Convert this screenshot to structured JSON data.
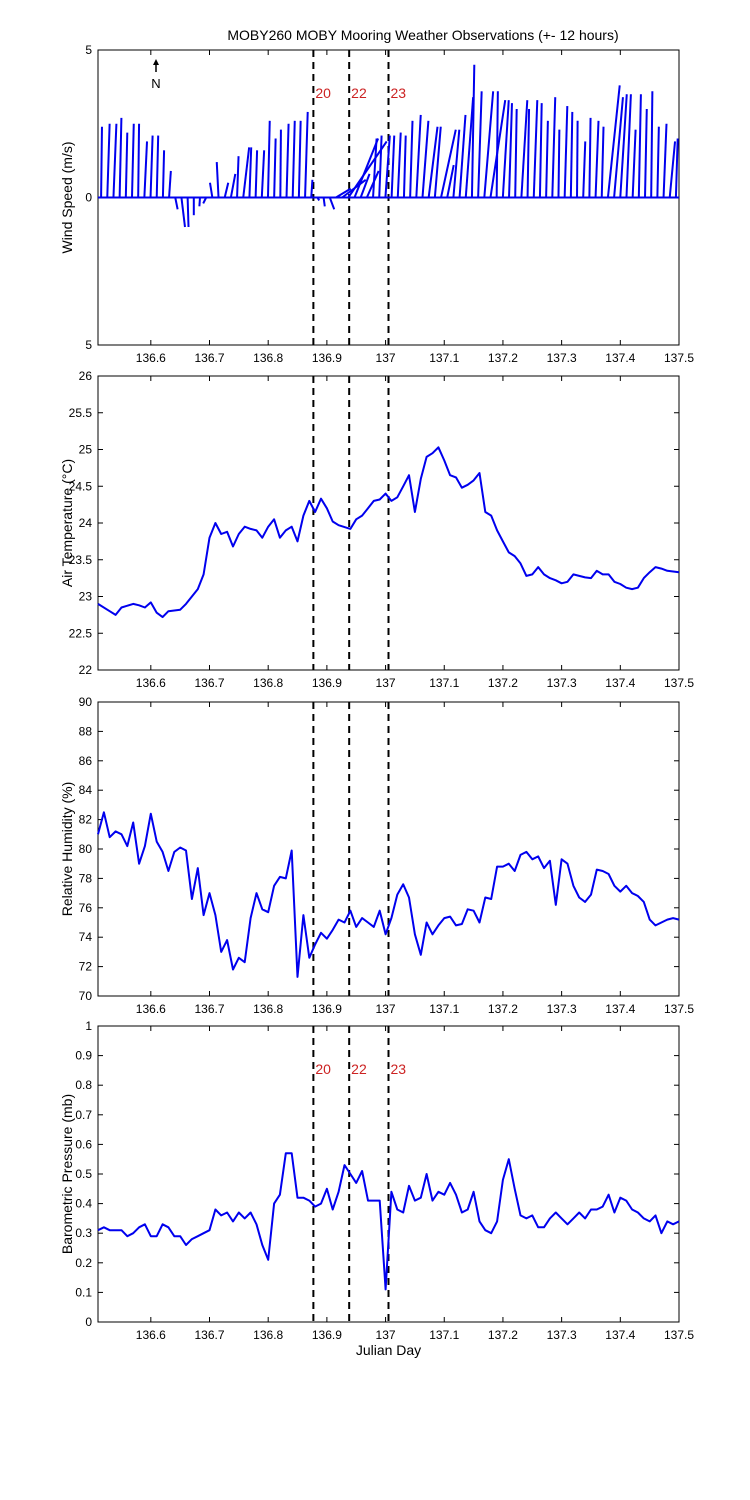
{
  "title": "MOBY260 MOBY Mooring Weather Observations (+- 12 hours)",
  "north_label": "N",
  "colors": {
    "series": "#0000ee",
    "marker_label": "#cc2222",
    "axis": "#000000",
    "marker_line": "#000000"
  },
  "shared_x": {
    "xlim": [
      136.51,
      137.5
    ],
    "ticks": [
      136.6,
      136.7,
      136.8,
      136.9,
      137,
      137.1,
      137.2,
      137.3,
      137.4,
      137.5
    ],
    "tick_labels": [
      "136.6",
      "136.7",
      "136.8",
      "136.9",
      "137",
      "137.1",
      "137.2",
      "137.3",
      "137.4",
      "137.5"
    ]
  },
  "markers": {
    "x": [
      136.877,
      136.938,
      137.005
    ],
    "labels": [
      "20",
      "22",
      "23"
    ]
  },
  "chart_data": [
    {
      "type": "quiver",
      "ylabel": "Wind Speed (m/s)",
      "xlabel": "",
      "ylim": [
        -5,
        5
      ],
      "yticks": [
        -5,
        0,
        5
      ],
      "ytick_labels": [
        "5",
        "0",
        "5"
      ],
      "show_marker_labels": true,
      "show_north_arrow": true,
      "u": [
        0.03,
        0.08,
        0.1,
        0.06,
        0.05,
        0.06,
        0.03,
        0.09,
        0.07,
        0.05,
        0.04,
        0.06,
        0.08,
        0.12,
        0.03,
        0.0,
        -0.02,
        -0.1,
        -0.08,
        -0.06,
        0.12,
        0.15,
        0.05,
        0.2,
        0.06,
        0.05,
        0.08,
        0.06,
        0.05,
        0.02,
        0.07,
        0.07,
        0.06,
        0.09,
        0.04,
        0.06,
        0.04,
        0.15,
        0.5,
        0.8,
        1.3,
        0.8,
        0.3,
        0.4,
        0.12,
        0.08,
        0.15,
        0.09,
        0.1,
        0.06,
        0.08,
        0.15,
        0.2,
        0.3,
        0.2,
        0.5,
        0.22,
        0.2,
        0.2,
        0.25,
        0.08,
        0.12,
        0.3,
        0.5,
        0.04,
        0.2,
        0.1,
        0.05,
        0.2,
        0.05,
        0.12,
        0.06,
        0.06,
        0.1,
        0.03,
        0.09,
        0.05,
        0.02,
        0.07,
        0.04,
        0.1,
        0.06,
        0.4,
        0.3,
        0.22,
        0.15,
        0.1,
        0.07,
        0.06,
        0.04,
        0.05,
        0.1,
        0.18,
        0.06
      ],
      "v": [
        2.4,
        2.5,
        2.5,
        2.7,
        2.2,
        2.5,
        2.5,
        1.9,
        2.1,
        2.1,
        1.6,
        0.9,
        -0.4,
        -1.0,
        -1.0,
        -0.6,
        -0.3,
        -0.2,
        0.5,
        1.2,
        0.5,
        0.8,
        1.4,
        1.7,
        1.7,
        1.6,
        1.6,
        2.6,
        2.0,
        2.3,
        2.5,
        2.6,
        2.6,
        2.9,
        0.6,
        -0.1,
        -0.3,
        -0.4,
        0.3,
        0.6,
        1.9,
        2.0,
        0.8,
        0.9,
        2.0,
        2.1,
        2.1,
        2.1,
        2.2,
        2.1,
        2.6,
        2.8,
        2.6,
        2.4,
        2.4,
        2.3,
        1.1,
        2.3,
        2.8,
        3.4,
        4.5,
        3.6,
        3.6,
        3.3,
        3.6,
        3.3,
        3.2,
        3.0,
        3.3,
        3.0,
        3.3,
        3.2,
        2.6,
        3.4,
        2.3,
        3.1,
        2.9,
        2.6,
        1.9,
        2.7,
        2.6,
        2.4,
        3.8,
        3.4,
        3.5,
        3.5,
        2.3,
        3.5,
        3.0,
        3.6,
        2.4,
        2.5,
        1.9,
        2.0
      ]
    },
    {
      "type": "line",
      "ylabel": "Air Temperature (°C)",
      "xlabel": "",
      "ylim": [
        22,
        26
      ],
      "yticks": [
        22,
        22.5,
        23,
        23.5,
        24,
        24.5,
        25,
        25.5,
        26
      ],
      "ytick_labels": [
        "22",
        "22.5",
        "23",
        "23.5",
        "24",
        "24.5",
        "25",
        "25.5",
        "26"
      ],
      "show_marker_labels": false,
      "x": [
        136.51,
        136.53,
        136.54,
        136.55,
        136.57,
        136.58,
        136.59,
        136.6,
        136.61,
        136.62,
        136.63,
        136.65,
        136.66,
        136.67,
        136.68,
        136.69,
        136.7,
        136.71,
        136.72,
        136.73,
        136.74,
        136.75,
        136.76,
        136.77,
        136.78,
        136.79,
        136.8,
        136.81,
        136.82,
        136.83,
        136.84,
        136.85,
        136.86,
        136.87,
        136.88,
        136.89,
        136.9,
        136.91,
        136.92,
        136.94,
        136.95,
        136.96,
        136.97,
        136.98,
        136.99,
        137.0,
        137.01,
        137.02,
        137.03,
        137.04,
        137.05,
        137.06,
        137.07,
        137.08,
        137.09,
        137.1,
        137.11,
        137.12,
        137.13,
        137.14,
        137.15,
        137.16,
        137.17,
        137.18,
        137.19,
        137.2,
        137.21,
        137.22,
        137.23,
        137.24,
        137.25,
        137.26,
        137.27,
        137.28,
        137.29,
        137.3,
        137.31,
        137.32,
        137.33,
        137.34,
        137.35,
        137.36,
        137.37,
        137.38,
        137.39,
        137.4,
        137.41,
        137.42,
        137.43,
        137.44,
        137.45,
        137.46,
        137.47,
        137.48,
        137.5
      ],
      "y": [
        22.9,
        22.8,
        22.75,
        22.85,
        22.9,
        22.88,
        22.85,
        22.92,
        22.78,
        22.72,
        22.8,
        22.82,
        22.9,
        23.0,
        23.1,
        23.3,
        23.8,
        24.0,
        23.85,
        23.88,
        23.68,
        23.85,
        23.95,
        23.92,
        23.9,
        23.8,
        23.95,
        24.05,
        23.8,
        23.9,
        23.95,
        23.75,
        24.1,
        24.3,
        24.15,
        24.33,
        24.2,
        24.02,
        23.97,
        23.92,
        24.05,
        24.1,
        24.2,
        24.3,
        24.32,
        24.4,
        24.3,
        24.35,
        24.5,
        24.65,
        24.15,
        24.6,
        24.9,
        24.95,
        25.03,
        24.85,
        24.65,
        24.62,
        24.48,
        24.52,
        24.58,
        24.68,
        24.15,
        24.1,
        23.9,
        23.75,
        23.6,
        23.55,
        23.45,
        23.28,
        23.3,
        23.4,
        23.3,
        23.25,
        23.22,
        23.18,
        23.2,
        23.3,
        23.28,
        23.26,
        23.25,
        23.35,
        23.3,
        23.3,
        23.2,
        23.17,
        23.12,
        23.1,
        23.12,
        23.25,
        23.33,
        23.4,
        23.38,
        23.35,
        23.33
      ]
    },
    {
      "type": "line",
      "ylabel": "Relative Humidity (%)",
      "xlabel": "",
      "ylim": [
        70,
        90
      ],
      "yticks": [
        70,
        72,
        74,
        76,
        78,
        80,
        82,
        84,
        86,
        88,
        90
      ],
      "ytick_labels": [
        "70",
        "72",
        "74",
        "76",
        "78",
        "80",
        "82",
        "84",
        "86",
        "88",
        "90"
      ],
      "show_marker_labels": false,
      "x": [
        136.51,
        136.52,
        136.53,
        136.54,
        136.55,
        136.56,
        136.57,
        136.58,
        136.59,
        136.6,
        136.61,
        136.62,
        136.63,
        136.64,
        136.65,
        136.66,
        136.67,
        136.68,
        136.69,
        136.7,
        136.71,
        136.72,
        136.73,
        136.74,
        136.75,
        136.76,
        136.77,
        136.78,
        136.79,
        136.8,
        136.81,
        136.82,
        136.83,
        136.84,
        136.85,
        136.86,
        136.87,
        136.88,
        136.89,
        136.9,
        136.91,
        136.92,
        136.93,
        136.94,
        136.95,
        136.96,
        136.97,
        136.98,
        136.99,
        137.0,
        137.01,
        137.02,
        137.03,
        137.04,
        137.05,
        137.06,
        137.07,
        137.08,
        137.09,
        137.1,
        137.11,
        137.12,
        137.13,
        137.14,
        137.15,
        137.16,
        137.17,
        137.18,
        137.19,
        137.2,
        137.21,
        137.22,
        137.23,
        137.24,
        137.25,
        137.26,
        137.27,
        137.28,
        137.29,
        137.3,
        137.31,
        137.32,
        137.33,
        137.34,
        137.35,
        137.36,
        137.37,
        137.38,
        137.39,
        137.4,
        137.41,
        137.42,
        137.43,
        137.44,
        137.45,
        137.46,
        137.47,
        137.48,
        137.49,
        137.5
      ],
      "y": [
        81.0,
        82.5,
        80.8,
        81.2,
        81.0,
        80.2,
        81.8,
        79.0,
        80.2,
        82.4,
        80.5,
        79.8,
        78.5,
        79.8,
        80.1,
        79.9,
        76.6,
        78.7,
        75.5,
        77.0,
        75.5,
        73.0,
        73.8,
        71.8,
        72.6,
        72.3,
        75.3,
        77.0,
        75.9,
        75.7,
        77.5,
        78.1,
        78.0,
        79.9,
        71.3,
        75.5,
        72.6,
        73.5,
        74.3,
        73.9,
        74.5,
        75.2,
        75.0,
        75.8,
        74.7,
        75.3,
        75.0,
        74.7,
        75.8,
        74.2,
        75.3,
        76.9,
        77.6,
        76.7,
        74.2,
        72.8,
        75.0,
        74.2,
        74.8,
        75.3,
        75.4,
        74.8,
        74.9,
        75.9,
        75.8,
        75.0,
        76.7,
        76.6,
        78.8,
        78.8,
        79.0,
        78.5,
        79.6,
        79.8,
        79.3,
        79.5,
        78.7,
        79.2,
        76.2,
        79.3,
        79.0,
        77.5,
        76.7,
        76.4,
        76.9,
        78.6,
        78.5,
        78.3,
        77.5,
        77.1,
        77.5,
        77.0,
        76.8,
        76.4,
        75.2,
        74.8,
        75.0,
        75.2,
        75.3,
        75.2
      ]
    },
    {
      "type": "line",
      "ylabel": "Barometric Pressure (mb)",
      "xlabel": "Julian Day",
      "ylim": [
        0,
        1
      ],
      "yticks": [
        0,
        0.1,
        0.2,
        0.3,
        0.4,
        0.5,
        0.6,
        0.7,
        0.8,
        0.9,
        1
      ],
      "ytick_labels": [
        "0",
        "0.1",
        "0.2",
        "0.3",
        "0.4",
        "0.5",
        "0.6",
        "0.7",
        "0.8",
        "0.9",
        "1"
      ],
      "show_marker_labels": true,
      "x": [
        136.51,
        136.52,
        136.53,
        136.54,
        136.55,
        136.56,
        136.57,
        136.58,
        136.59,
        136.6,
        136.61,
        136.62,
        136.63,
        136.64,
        136.65,
        136.66,
        136.67,
        136.68,
        136.69,
        136.7,
        136.71,
        136.72,
        136.73,
        136.74,
        136.75,
        136.76,
        136.77,
        136.78,
        136.79,
        136.8,
        136.81,
        136.82,
        136.83,
        136.84,
        136.85,
        136.86,
        136.87,
        136.88,
        136.89,
        136.9,
        136.91,
        136.92,
        136.93,
        136.94,
        136.95,
        136.96,
        136.97,
        136.98,
        136.99,
        137.0,
        137.01,
        137.02,
        137.03,
        137.04,
        137.05,
        137.06,
        137.07,
        137.08,
        137.09,
        137.1,
        137.11,
        137.12,
        137.13,
        137.14,
        137.15,
        137.16,
        137.17,
        137.18,
        137.19,
        137.2,
        137.21,
        137.22,
        137.23,
        137.24,
        137.25,
        137.26,
        137.27,
        137.28,
        137.29,
        137.3,
        137.31,
        137.32,
        137.33,
        137.34,
        137.35,
        137.36,
        137.37,
        137.38,
        137.39,
        137.4,
        137.41,
        137.42,
        137.43,
        137.44,
        137.45,
        137.46,
        137.47,
        137.48,
        137.49,
        137.5
      ],
      "y": [
        0.31,
        0.32,
        0.31,
        0.31,
        0.31,
        0.29,
        0.3,
        0.32,
        0.33,
        0.29,
        0.29,
        0.33,
        0.32,
        0.29,
        0.29,
        0.26,
        0.28,
        0.29,
        0.3,
        0.31,
        0.38,
        0.36,
        0.37,
        0.34,
        0.37,
        0.35,
        0.37,
        0.33,
        0.26,
        0.21,
        0.4,
        0.43,
        0.57,
        0.57,
        0.42,
        0.42,
        0.41,
        0.39,
        0.4,
        0.45,
        0.38,
        0.44,
        0.53,
        0.5,
        0.47,
        0.51,
        0.41,
        0.41,
        0.41,
        0.11,
        0.44,
        0.38,
        0.37,
        0.46,
        0.41,
        0.42,
        0.5,
        0.41,
        0.44,
        0.43,
        0.47,
        0.43,
        0.37,
        0.38,
        0.44,
        0.34,
        0.31,
        0.3,
        0.34,
        0.48,
        0.55,
        0.45,
        0.36,
        0.35,
        0.36,
        0.32,
        0.32,
        0.35,
        0.37,
        0.35,
        0.33,
        0.35,
        0.37,
        0.35,
        0.38,
        0.38,
        0.39,
        0.43,
        0.37,
        0.42,
        0.41,
        0.38,
        0.37,
        0.35,
        0.34,
        0.36,
        0.3,
        0.34,
        0.33,
        0.34
      ]
    }
  ]
}
